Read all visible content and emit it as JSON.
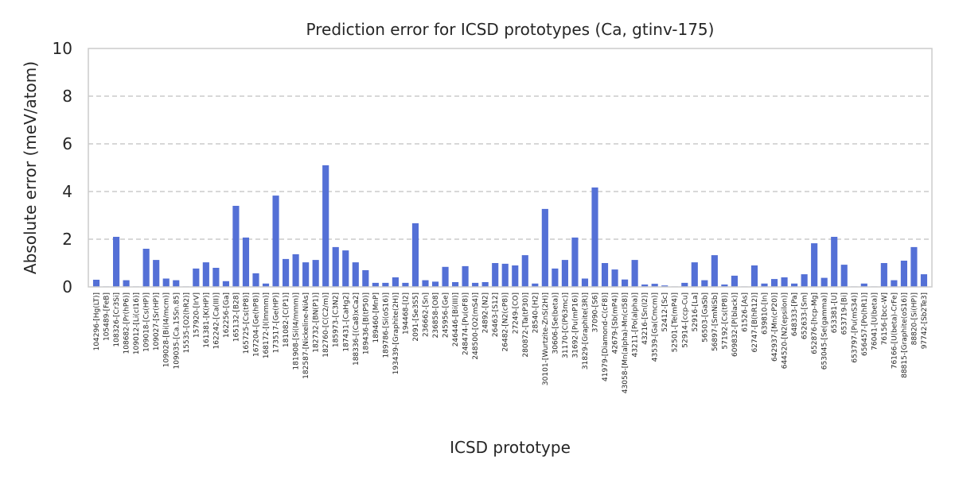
{
  "chart_data": {
    "type": "bar",
    "title": "Prediction error for ICSD prototypes (Ca, gtinv-175)",
    "xlabel": "ICSD prototype",
    "ylabel": "Absolute error (meV/atom)",
    "ylim": [
      0,
      10
    ],
    "yticks": [
      0,
      2,
      4,
      6,
      8,
      10
    ],
    "grid": "y-dashed",
    "bar_color": "#5470d6",
    "categories": [
      "104296-[Hg(LT)]",
      "105489-[FeB]",
      "108326-[Cr3Si]",
      "108682-[Pr(hP6)]",
      "109012-[Li(cI16)]",
      "109018-[Cs(HP)]",
      "109027-[Sr(HP)]",
      "109028-[Bi(I4/mcm)]",
      "109035-[Ca.15Sn.85]",
      "15535-[O2(hR2)]",
      "157920-[IrV]",
      "161381-[K(HP)]",
      "162242-[Ca(III)]",
      "162256-[Ga]",
      "165132-[B28]",
      "165725-[Cs(tP8)]",
      "167204-[Ge(hP8)]",
      "168172-[I(Immm)]",
      "173517-[Ge(HP)]",
      "181082-[C(P1)]",
      "181908-[Si(I4/mmm)]",
      "182587-[Nickeline-NiAs]",
      "182732-[BN(P1)]",
      "182760-[C(C2/m)]",
      "185973-[C3N2]",
      "187431-[CaHg2]",
      "188336-[(Ca8)xCa2]",
      "189436-[B(tP50)]",
      "189460-[MnP]",
      "189786-[Si(oS16)]",
      "193439-[Graphite(2H)]",
      "194468-[I2]",
      "2091-[Se3S5]",
      "236662-[Sn]",
      "236858-[O8]",
      "245956-[Ge]",
      "246446-[Bi(III)]",
      "248474-[Pu(oF8)]",
      "248500-[O2(mS4)]",
      "24892-[N2]",
      "26463-[S12]",
      "26482-[N2(cP8)]",
      "27249-[CO]",
      "280872-[Ta(tP30)]",
      "28540-[H2]",
      "30101-[Wurtzite-ZnS(2H)]",
      "30606-[Se(beta)]",
      "31170-[C(P63mc)]",
      "31692-[Pu(mP16)]",
      "31829-[Graphite(3R)]",
      "37090-[S6]",
      "41979-[Diamond-C(cF8)]",
      "42679-[Sb(mP4)]",
      "43058-[Mn(alpha)-Mn(cI58)]",
      "43211-[Po(alpha)]",
      "43216-[Sn(I2)]",
      "43539-[Ga(Cmcm)]",
      "52412-[Sc]",
      "52501-[Te(mP4)]",
      "52914-[ccp-Cu]",
      "52916-[La]",
      "56503-[GaSb]",
      "56897-[SmNiSb]",
      "57192-[Cs(tP8)]",
      "609832-[P(black)]",
      "61526-[As]",
      "62747-[B(hR12)]",
      "639810-[In]",
      "642937-[Mn(cP20)]",
      "644520-[N2(epsilon)]",
      "648333-[Pa]",
      "652633-[Sm]",
      "652876-[hcp-Mg]",
      "653045-[Se(gamma)]",
      "653381-[U]",
      "653719-[Bi]",
      "653797-[Pu(mS34)]",
      "656457-[Po(hR1)]",
      "76041-[U(beta)]",
      "76156-[bcc-W]",
      "76166-[U(beta)-CrFe]",
      "88815-[Graphite(oS16)]",
      "88820-[Si(HP)]",
      "97742-[Sb2Te3]"
    ],
    "values": [
      0.3,
      0.02,
      2.1,
      0.28,
      0.02,
      1.6,
      1.13,
      0.35,
      0.28,
      0.02,
      0.77,
      1.03,
      0.8,
      0.24,
      3.4,
      2.07,
      0.57,
      0.14,
      3.83,
      1.17,
      1.37,
      1.03,
      1.13,
      5.1,
      1.67,
      1.53,
      1.03,
      0.7,
      0.17,
      0.17,
      0.4,
      0.17,
      2.67,
      0.28,
      0.22,
      0.84,
      0.2,
      0.87,
      0.17,
      0.2,
      1.0,
      0.97,
      0.9,
      1.33,
      0.14,
      3.27,
      0.77,
      1.13,
      2.07,
      0.35,
      4.17,
      1.0,
      0.73,
      0.31,
      1.13,
      0.1,
      0.13,
      0.06,
      0.02,
      0.17,
      1.03,
      0.28,
      1.33,
      0.1,
      0.47,
      0.02,
      0.9,
      0.14,
      0.33,
      0.4,
      0.14,
      0.53,
      1.83,
      0.38,
      2.1,
      0.93,
      0.02,
      0.14,
      0.02,
      1.0,
      0.28,
      1.1,
      1.67,
      0.53
    ]
  }
}
